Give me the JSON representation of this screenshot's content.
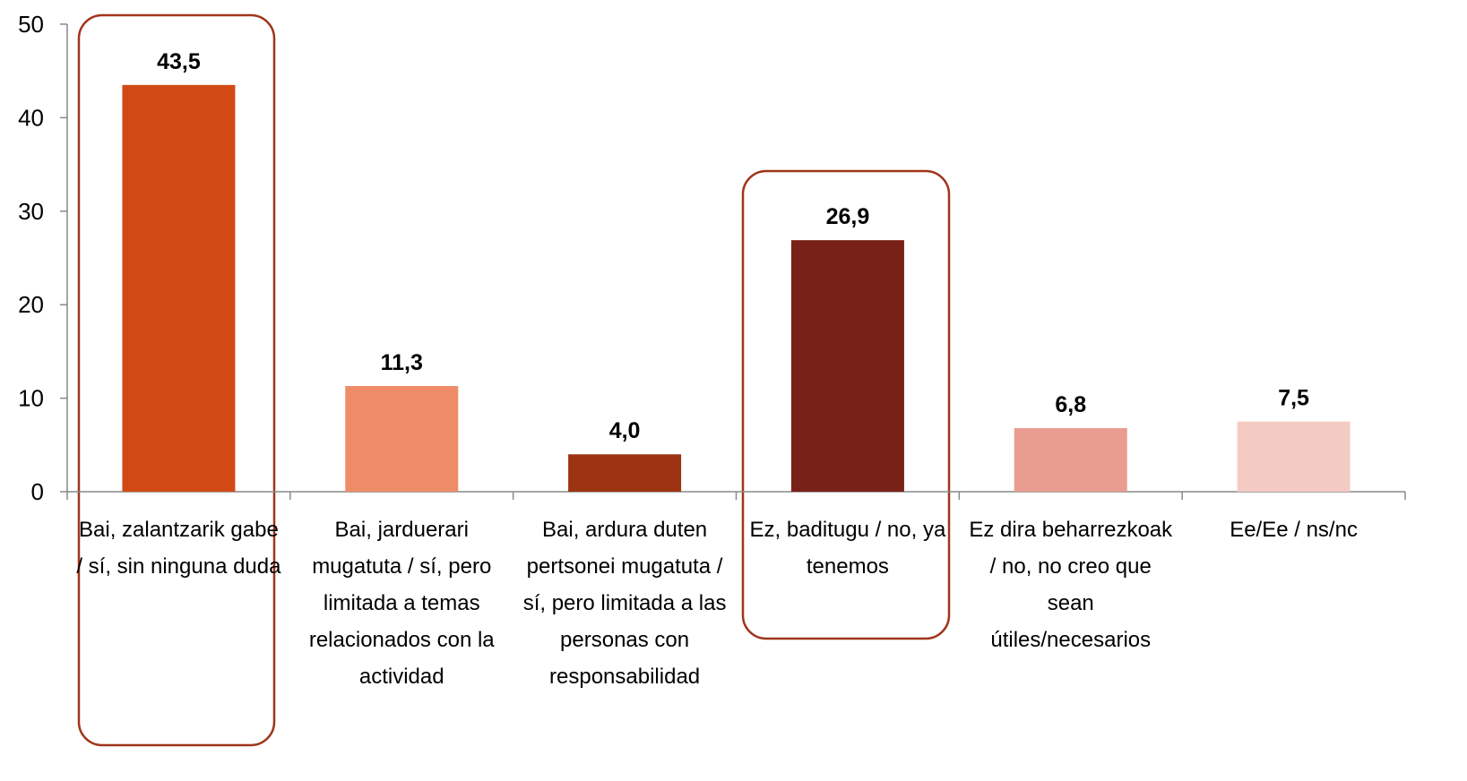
{
  "chart_data": {
    "type": "bar",
    "categories": [
      "Bai, zalantzarik gabe / sí, sin ninguna duda",
      "Bai, jarduerari mugatuta / sí, pero limitada a temas relacionados con la actividad",
      "Bai, ardura duten pertsonei mugatuta / sí, pero limitada a las personas con responsabilidad",
      "Ez, baditugu / no, ya tenemos",
      "Ez dira beharrezkoak / no, no creo que sean útiles/necesarios",
      "Ee/Ee / ns/nc"
    ],
    "values": [
      43.5,
      11.3,
      4.0,
      26.9,
      6.8,
      7.5
    ],
    "value_labels": [
      "43,5",
      "11,3",
      "4,0",
      "26,9",
      "6,8",
      "7,5"
    ],
    "colors": [
      "#d14a16",
      "#ef8c68",
      "#9c3412",
      "#782117",
      "#e89d90",
      "#f4cbc3"
    ],
    "ylim": [
      0,
      50
    ],
    "yticks": [
      0,
      10,
      20,
      30,
      40,
      50
    ]
  }
}
